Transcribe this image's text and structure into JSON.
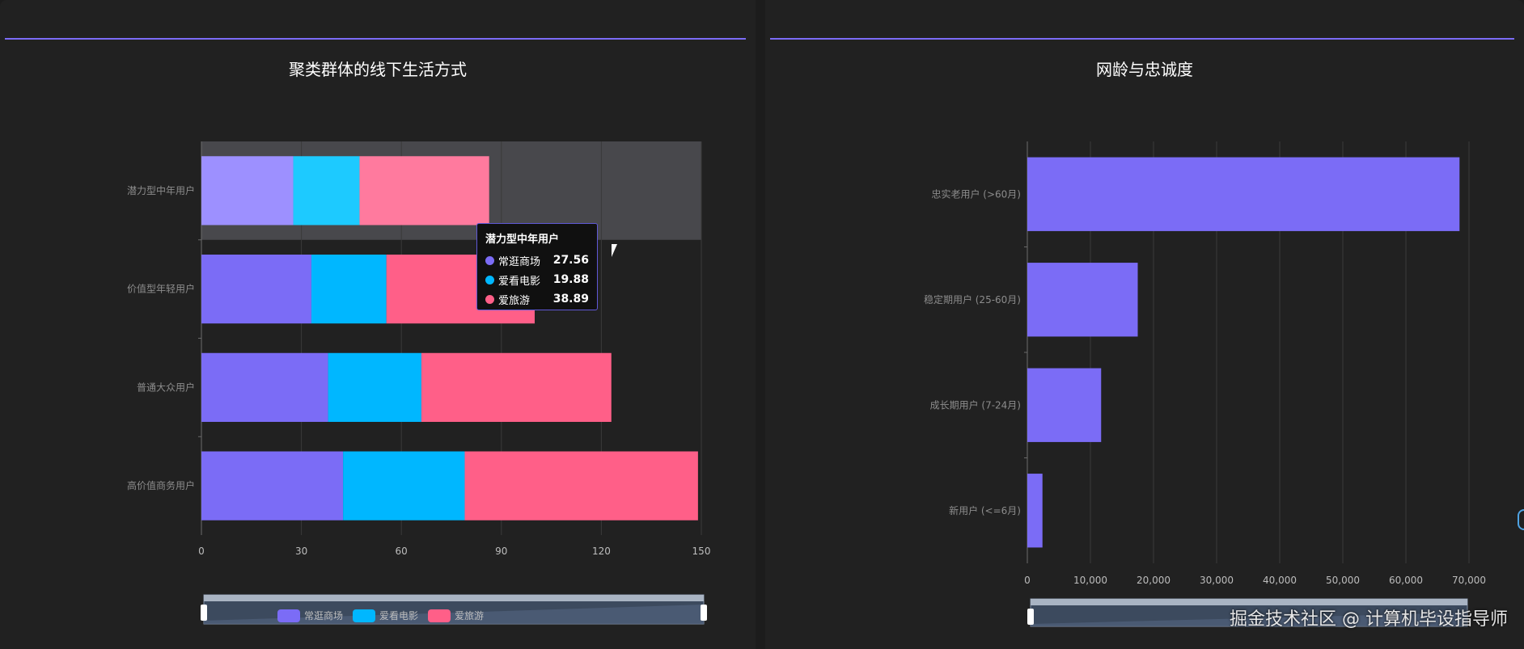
{
  "left_panel": {
    "title": "聚类群体的线下生活方式",
    "tooltip": {
      "title": "潜力型中年用户",
      "rows": [
        {
          "name": "常逛商场",
          "value": "27.56",
          "color": "#7b6cf6"
        },
        {
          "name": "爱看电影",
          "value": "19.88",
          "color": "#00b7ff"
        },
        {
          "name": "爱旅游",
          "value": "38.89",
          "color": "#ff5f88"
        }
      ]
    },
    "legend": [
      {
        "label": "常逛商场",
        "color": "#7b6cf6"
      },
      {
        "label": "爱看电影",
        "color": "#00b7ff"
      },
      {
        "label": "爱旅游",
        "color": "#ff5f88"
      }
    ]
  },
  "right_panel": {
    "title": "网龄与忠诚度"
  },
  "watermark": "掘金技术社区 @ 计算机毕设指导师",
  "chart_data": [
    {
      "type": "bar",
      "orientation": "horizontal",
      "stacked": true,
      "title": "聚类群体的线下生活方式",
      "categories": [
        "潜力型中年用户",
        "价值型年轻用户",
        "普通大众用户",
        "高价值商务用户"
      ],
      "series": [
        {
          "name": "常逛商场",
          "values": [
            27.56,
            33,
            38,
            42.5
          ]
        },
        {
          "name": "爱看电影",
          "values": [
            19.88,
            22.5,
            28,
            36.5
          ]
        },
        {
          "name": "爱旅游",
          "values": [
            38.89,
            44.5,
            57,
            70
          ]
        }
      ],
      "xlim": [
        0,
        150
      ],
      "xticks": [
        0,
        30,
        60,
        90,
        120,
        150
      ],
      "highlighted_category": "潜力型中年用户",
      "grid": true,
      "legend_position": "bottom"
    },
    {
      "type": "bar",
      "orientation": "horizontal",
      "title": "网龄与忠诚度",
      "categories": [
        "忠实老用户 (>60月)",
        "稳定期用户 (25-60月)",
        "成长期用户 (7-24月)",
        "新用户 (<=6月)"
      ],
      "values": [
        68500,
        17500,
        11700,
        2400
      ],
      "xlim": [
        0,
        70000
      ],
      "xticks": [
        "0",
        "10,000",
        "20,000",
        "30,000",
        "40,000",
        "50,000",
        "60,000",
        "70,000"
      ],
      "grid": true
    }
  ]
}
